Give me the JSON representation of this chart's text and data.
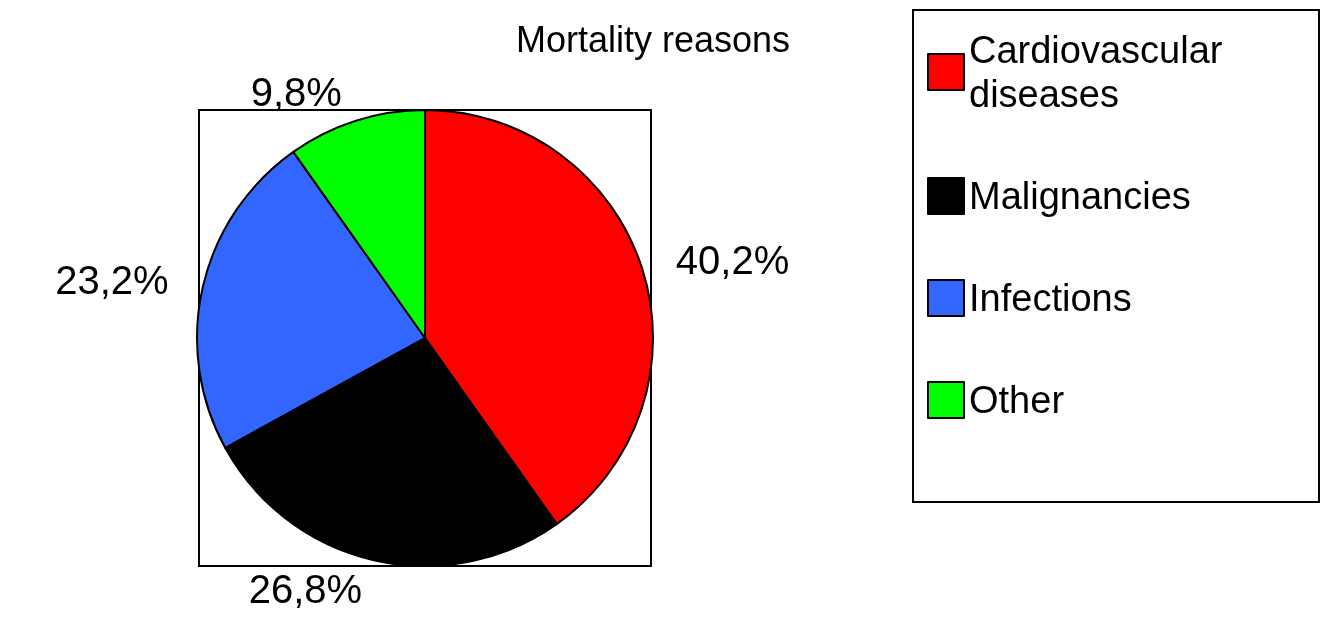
{
  "chart_data": {
    "type": "pie",
    "title": "Mortality reasons",
    "categories": [
      "Cardiovascular diseases",
      "Malignancies",
      "Infections",
      "Other"
    ],
    "values": [
      40.2,
      26.8,
      23.2,
      9.8
    ],
    "colors": [
      "#ff0000",
      "#000000",
      "#3366ff",
      "#00ff00"
    ],
    "value_labels": [
      "40,2%",
      "26,8%",
      "23,2%",
      "9,8%"
    ],
    "legend": "right"
  }
}
